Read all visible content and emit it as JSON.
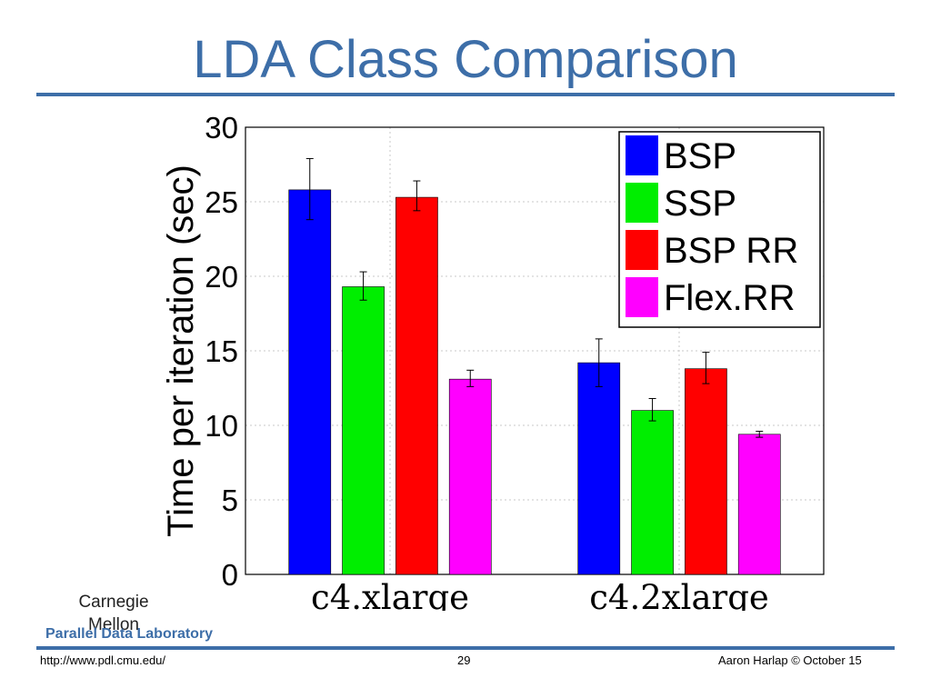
{
  "slide": {
    "title": "LDA Class Comparison",
    "logo_text": "Carnegie Mellon",
    "lab_name": "Parallel Data Laboratory",
    "url": "http://www.pdl.cmu.edu/",
    "page_number": "29",
    "author": "Aaron Harlap © October 15",
    "accent_color": "#3d6ea8"
  },
  "chart_data": {
    "type": "bar",
    "title": "",
    "xlabel": "",
    "ylabel": "Time per iteration (sec)",
    "ylim": [
      0,
      30
    ],
    "yticks": [
      "0",
      "5",
      "10",
      "15",
      "20",
      "25",
      "30"
    ],
    "grid": true,
    "legend_position": "top-right",
    "categories": [
      "c4.xlarge",
      "c4.2xlarge"
    ],
    "series": [
      {
        "name": "BSP",
        "color": "#0000ff",
        "values": [
          25.8,
          14.2
        ],
        "err_low": [
          23.8,
          12.6
        ],
        "err_high": [
          27.9,
          15.8
        ]
      },
      {
        "name": "SSP",
        "color": "#00ee00",
        "values": [
          19.3,
          11.0
        ],
        "err_low": [
          18.4,
          10.3
        ],
        "err_high": [
          20.3,
          11.8
        ]
      },
      {
        "name": "BSP RR",
        "color": "#ff0000",
        "values": [
          25.3,
          13.8
        ],
        "err_low": [
          24.4,
          12.8
        ],
        "err_high": [
          26.4,
          14.9
        ]
      },
      {
        "name": "Flex.RR",
        "color": "#ff00ff",
        "values": [
          13.1,
          9.4
        ],
        "err_low": [
          12.6,
          9.2
        ],
        "err_high": [
          13.7,
          9.6
        ]
      }
    ]
  }
}
